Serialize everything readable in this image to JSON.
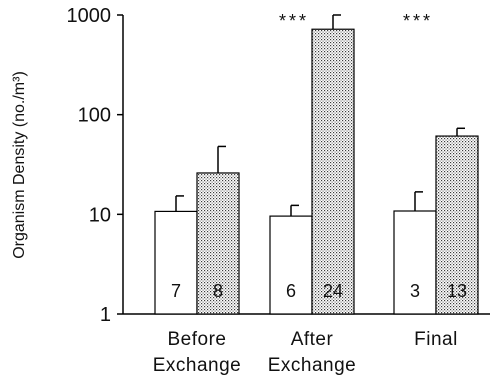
{
  "chart_data": {
    "type": "bar",
    "yscale": "log",
    "ylim": [
      1,
      1000
    ],
    "ylabel": "Organism Density (no./m³)",
    "xlabel": "",
    "title": "",
    "y_ticks": [
      1,
      10,
      100,
      1000
    ],
    "y_tick_labels": [
      "1",
      "10",
      "100",
      "1000"
    ],
    "grid": false,
    "legend": "none",
    "categories": [
      [
        "Before",
        "Exchange"
      ],
      [
        "After",
        "Exchange"
      ],
      [
        "Final"
      ]
    ],
    "series": [
      {
        "fill": "#ffffff",
        "pattern": "none",
        "values": [
          10.7,
          9.6,
          10.8
        ],
        "error_upper": [
          15.3,
          12.3,
          16.8
        ],
        "n_labels": [
          "7",
          "6",
          "3"
        ]
      },
      {
        "fill": "#d9d9d9",
        "pattern": "dots",
        "values": [
          26,
          720,
          61
        ],
        "error_upper": [
          48,
          1000,
          73
        ],
        "n_labels": [
          "8",
          "24",
          "13"
        ]
      }
    ],
    "significance": [
      "",
      "***",
      "***"
    ]
  }
}
